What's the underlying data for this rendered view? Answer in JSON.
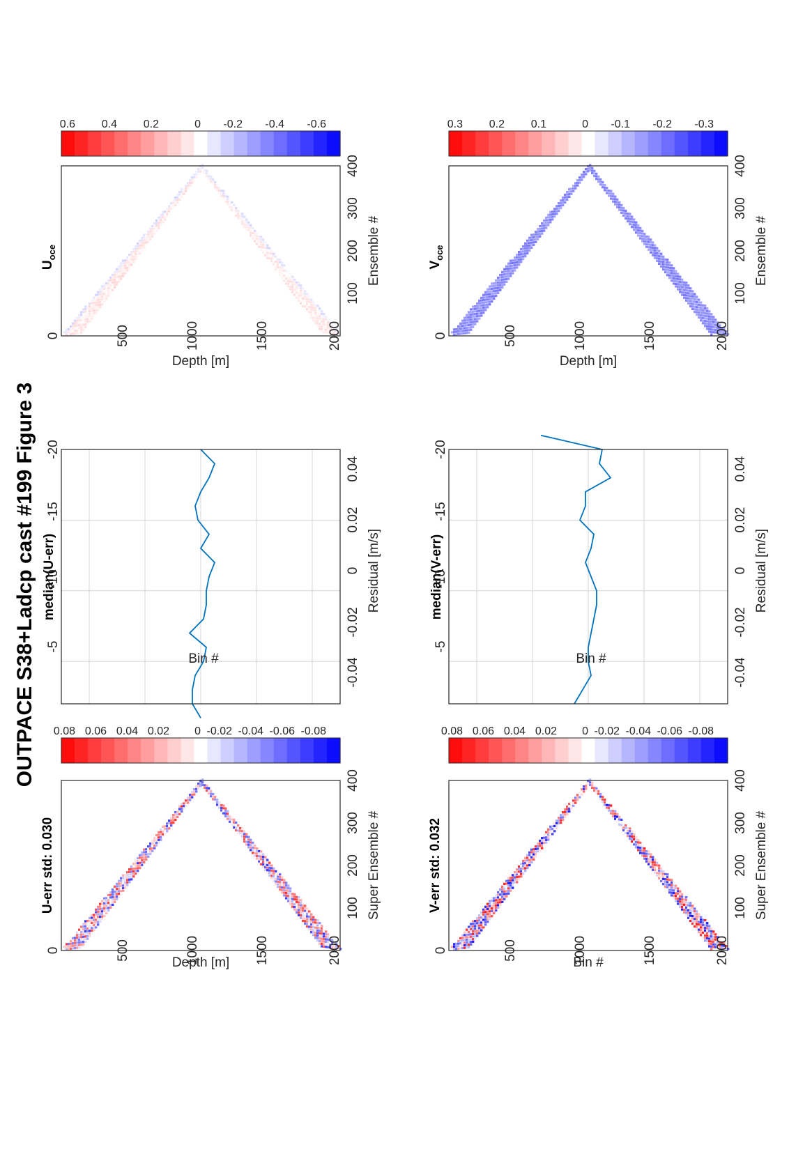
{
  "figure_title": "OUTPACE S38+Ladcp cast #199  Figure 3",
  "panels": {
    "u_err_map": {
      "title": "U-err std: 0.030",
      "xlabel": "Super Ensemble #",
      "ylabel": "Depth [m]",
      "xticks": [
        "100",
        "200",
        "300",
        "400"
      ],
      "yticks": [
        "0",
        "500",
        "1000",
        "1500",
        "2000"
      ]
    },
    "u_err_cbar": {
      "ticks": [
        "0.08",
        "0.06",
        "0.04",
        "0.02",
        "0",
        "-0.02",
        "-0.04",
        "-0.06",
        "-0.08"
      ]
    },
    "u_median": {
      "title": "median(U-err)",
      "xlabel": "Residual [m/s]",
      "ylabel": "Bin #",
      "xticks": [
        "-0.04",
        "-0.02",
        "0",
        "0.02",
        "0.04"
      ],
      "yticks": [
        "-5",
        "-10",
        "-15",
        "-20"
      ]
    },
    "u_oce_map": {
      "title": "U",
      "title_sub": "oce",
      "xlabel": "Ensemble #",
      "ylabel": "Depth [m]",
      "xticks": [
        "100",
        "200",
        "300",
        "400"
      ],
      "yticks": [
        "0",
        "500",
        "1000",
        "1500",
        "2000"
      ]
    },
    "u_oce_cbar": {
      "ticks": [
        "0.6",
        "0.4",
        "0.2",
        "0",
        "-0.2",
        "-0.4",
        "-0.6"
      ]
    },
    "v_err_map": {
      "title": "V-err std: 0.032",
      "xlabel": "Super Ensemble #",
      "ylabel": "Bin #",
      "xticks": [
        "100",
        "200",
        "300",
        "400"
      ],
      "yticks": [
        "0",
        "500",
        "1000",
        "1500",
        "2000"
      ]
    },
    "v_err_cbar": {
      "ticks": [
        "0.08",
        "0.06",
        "0.04",
        "0.02",
        "0",
        "-0.02",
        "-0.04",
        "-0.06",
        "-0.08"
      ]
    },
    "v_median": {
      "title": "median(V-err)",
      "xlabel": "Residual [m/s]",
      "ylabel": "Bin #",
      "xticks": [
        "-0.04",
        "-0.02",
        "0",
        "0.02",
        "0.04"
      ],
      "yticks": [
        "-5",
        "-10",
        "-15",
        "-20"
      ]
    },
    "v_oce_map": {
      "title": "V",
      "title_sub": "oce",
      "xlabel": "Ensemble #",
      "ylabel": "Depth [m]",
      "xticks": [
        "100",
        "200",
        "300",
        "400"
      ],
      "yticks": [
        "0",
        "500",
        "1000",
        "1500",
        "2000"
      ]
    },
    "v_oce_cbar": {
      "ticks": [
        "0.3",
        "0.2",
        "0.1",
        "0",
        "-0.1",
        "-0.2",
        "-0.3"
      ]
    }
  },
  "colors": {
    "line": "#0072bd",
    "grid": "#d4d4d4",
    "red": "#ff0000",
    "blue": "#0000ff"
  },
  "chart_data": [
    {
      "type": "line",
      "id": "u_median",
      "title": "median(U-err)",
      "xlabel": "Residual [m/s]",
      "ylabel": "Bin #",
      "xlim": [
        -0.05,
        0.05
      ],
      "ylim": [
        -20,
        -2
      ],
      "grid": true,
      "x": [
        0.0,
        -0.003,
        -0.003,
        -0.002,
        0.001,
        0.002,
        -0.004,
        0.001,
        0.002,
        0.002,
        0.003,
        0.005,
        0.0,
        0.003,
        -0.001,
        -0.002,
        0.0,
        0.003,
        0.005,
        0.0
      ],
      "y": [
        -1,
        -2,
        -3,
        -4,
        -5,
        -6,
        -7,
        -8,
        -9,
        -10,
        -11,
        -12,
        -13,
        -14,
        -15,
        -16,
        -17,
        -18,
        -19,
        -20
      ]
    },
    {
      "type": "line",
      "id": "v_median",
      "title": "median(V-err)",
      "xlabel": "Residual [m/s]",
      "ylabel": "Bin #",
      "xlim": [
        -0.05,
        0.05
      ],
      "ylim": [
        -20,
        -2
      ],
      "grid": true,
      "x": [
        -0.005,
        -0.002,
        0.001,
        0.0,
        0.0,
        0.001,
        0.002,
        0.003,
        0.003,
        0.001,
        -0.001,
        0.001,
        0.002,
        -0.003,
        -0.001,
        -0.001,
        0.008,
        0.004,
        0.005,
        -0.017
      ],
      "y": [
        -2,
        -3,
        -4,
        -5,
        -6,
        -7,
        -8,
        -9,
        -10,
        -11,
        -12,
        -13,
        -14,
        -15,
        -16,
        -17,
        -18,
        -19,
        -20,
        -21
      ]
    },
    {
      "type": "heatmap",
      "id": "u_err_map",
      "title": "U-err std: 0.030",
      "xlabel": "Super Ensemble #",
      "ylabel": "Depth [m]",
      "xlim": [
        0,
        400
      ],
      "ylim": [
        0,
        2000
      ],
      "clim": [
        -0.1,
        0.1
      ],
      "apex": [
        200,
        2000
      ],
      "strength": 0.8
    },
    {
      "type": "heatmap",
      "id": "u_oce_map",
      "title": "U oce",
      "xlabel": "Ensemble #",
      "ylabel": "Depth [m]",
      "xlim": [
        0,
        400
      ],
      "ylim": [
        0,
        2000
      ],
      "clim": [
        -0.7,
        0.7
      ],
      "apex": [
        200,
        2000
      ],
      "strength": 0.35
    },
    {
      "type": "heatmap",
      "id": "v_err_map",
      "title": "V-err std: 0.032",
      "xlabel": "Super Ensemble #",
      "ylabel": "Bin #",
      "xlim": [
        0,
        400
      ],
      "ylim": [
        0,
        2000
      ],
      "clim": [
        -0.1,
        0.1
      ],
      "apex": [
        200,
        2000
      ],
      "strength": 0.9
    },
    {
      "type": "heatmap",
      "id": "v_oce_map",
      "title": "V oce",
      "xlabel": "Ensemble #",
      "ylabel": "Depth [m]",
      "xlim": [
        0,
        400
      ],
      "ylim": [
        0,
        2000
      ],
      "clim": [
        -0.35,
        0.35
      ],
      "apex": [
        200,
        2000
      ],
      "strength": 0.6
    }
  ]
}
